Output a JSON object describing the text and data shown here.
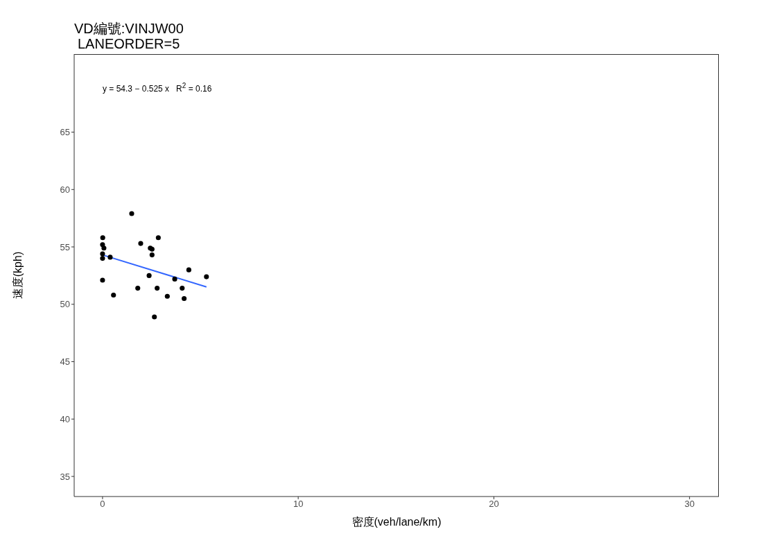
{
  "chart_data": {
    "type": "scatter",
    "title": "VD編號:VINJW00",
    "subtitle": "LANEORDER=5",
    "xlabel": "密度(veh/lane/km)",
    "ylabel": "速度(kph)",
    "annotations": [
      "y = 54.3 − 0.525 x   R$^{2}$ = 0.16"
    ],
    "xlim": [
      -1.45,
      31.5
    ],
    "xticks": [
      0,
      10,
      20,
      30
    ],
    "ylim": [
      33.25,
      71.8
    ],
    "yticks": [
      35,
      40,
      45,
      50,
      55,
      60,
      65
    ],
    "grid": false,
    "legend": false,
    "marker": "circle",
    "series": [
      {
        "type": "scatter",
        "color": "#000000",
        "x": [
          1.49,
          0.01,
          0,
          0.07,
          0,
          0,
          0.39,
          0,
          0.56,
          2.85,
          1.95,
          2.44,
          2.53,
          2.53,
          2.38,
          1.8,
          2.79,
          2.65,
          3.31,
          3.69,
          4.07,
          4.17,
          4.41,
          5.31
        ],
        "values": [
          57.9,
          55.8,
          55.2,
          54.9,
          54.4,
          54.0,
          54.1,
          52.1,
          50.8,
          55.8,
          55.3,
          54.9,
          54.8,
          54.3,
          52.5,
          51.4,
          51.4,
          48.9,
          50.7,
          52.2,
          51.4,
          50.5,
          53.0,
          52.4
        ]
      },
      {
        "type": "line",
        "color": "#3366ff",
        "line_style": "solid",
        "marker": "none",
        "x": [
          0,
          5.31
        ],
        "values": [
          54.3,
          51.51
        ]
      }
    ]
  }
}
